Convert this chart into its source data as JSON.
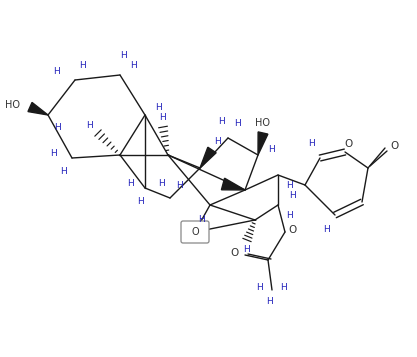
{
  "bg_color": "#ffffff",
  "bond_color": "#1a1a1a",
  "H_color": "#2222bb",
  "O_color": "#333333",
  "lw": 1.0,
  "figsize": [
    4.17,
    3.57
  ],
  "dpi": 100,
  "xlim": [
    0,
    417
  ],
  "ylim": [
    0,
    357
  ]
}
